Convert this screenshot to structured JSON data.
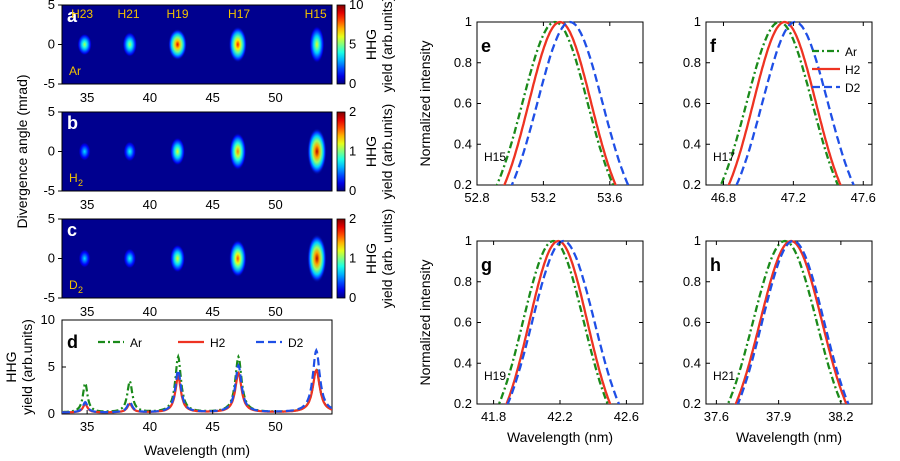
{
  "series": [
    {
      "name": "Ar",
      "color": "#1a8a1a",
      "dash": "7 3 2 3"
    },
    {
      "name": "H2",
      "color": "#ee3322",
      "dash": ""
    },
    {
      "name": "D2",
      "color": "#1f4fe6",
      "dash": "8 4"
    }
  ],
  "chart_data": [
    {
      "id": "a",
      "type": "heatmap",
      "panel_label": "a",
      "gas_label": "Ar",
      "harmonic_labels": [
        {
          "text": "H23",
          "x": 34.6
        },
        {
          "text": "H21",
          "x": 38.3
        },
        {
          "text": "H19",
          "x": 42.2
        },
        {
          "text": "H17",
          "x": 47.1
        },
        {
          "text": "H15",
          "x": 53.2
        }
      ],
      "xlim": [
        33,
        54.5
      ],
      "ylim": [
        -5,
        5
      ],
      "xticks": [
        35,
        40,
        45,
        50
      ],
      "yticks": [
        5,
        0,
        -5
      ],
      "ylabel": "Divergence angle (mrad)",
      "colorbar": {
        "min": 0,
        "max": 10,
        "ticks": [
          10,
          5,
          0
        ],
        "label1": "HHG",
        "label2": "yield (arb.units)"
      },
      "spots": [
        {
          "x": 34.8,
          "amp": 0.55,
          "sy": 1.4
        },
        {
          "x": 38.4,
          "amp": 0.55,
          "sy": 1.6
        },
        {
          "x": 42.2,
          "amp": 0.9,
          "sy": 2.0
        },
        {
          "x": 47.0,
          "amp": 0.85,
          "sy": 2.3
        },
        {
          "x": 53.3,
          "amp": 0.6,
          "sy": 2.4
        }
      ]
    },
    {
      "id": "b",
      "type": "heatmap",
      "panel_label": "b",
      "gas_label": "H",
      "gas_sub": "2",
      "xlim": [
        33,
        54.5
      ],
      "ylim": [
        -5,
        5
      ],
      "xticks": [
        35,
        40,
        45,
        50
      ],
      "yticks": [
        5,
        0,
        -5
      ],
      "colorbar": {
        "min": 0,
        "max": 2,
        "ticks": [
          2,
          1,
          0
        ],
        "label1": "HHG",
        "label2": "yield (arb.units)"
      },
      "spots": [
        {
          "x": 34.8,
          "amp": 0.35,
          "sy": 1.2
        },
        {
          "x": 38.4,
          "amp": 0.4,
          "sy": 1.3
        },
        {
          "x": 42.2,
          "amp": 0.6,
          "sy": 1.8
        },
        {
          "x": 47.0,
          "amp": 0.75,
          "sy": 2.4
        },
        {
          "x": 53.3,
          "amp": 0.95,
          "sy": 3.0
        }
      ]
    },
    {
      "id": "c",
      "type": "heatmap",
      "panel_label": "c",
      "gas_label": "D",
      "gas_sub": "2",
      "xlim": [
        33,
        54.5
      ],
      "ylim": [
        -5,
        5
      ],
      "xticks": [
        35,
        40,
        45,
        50
      ],
      "yticks": [
        5,
        0,
        -5
      ],
      "colorbar": {
        "min": 0,
        "max": 2,
        "ticks": [
          2,
          1,
          0
        ],
        "label1": "HHG",
        "label2": "yield (arb. units)"
      },
      "spots": [
        {
          "x": 34.8,
          "amp": 0.35,
          "sy": 1.2
        },
        {
          "x": 38.4,
          "amp": 0.4,
          "sy": 1.3
        },
        {
          "x": 42.2,
          "amp": 0.6,
          "sy": 1.8
        },
        {
          "x": 47.0,
          "amp": 0.8,
          "sy": 2.4
        },
        {
          "x": 53.3,
          "amp": 0.95,
          "sy": 3.1
        }
      ]
    },
    {
      "id": "d",
      "type": "line",
      "panel_label": "d",
      "xlim": [
        33,
        54.5
      ],
      "ylim": [
        0,
        10
      ],
      "xticks": [
        35,
        40,
        45,
        50
      ],
      "yticks": [
        10,
        5,
        0
      ],
      "xlabel": "Wavelength (nm)",
      "ylabel1": "HHG",
      "ylabel2": "yield (arb.units)",
      "peaks": {
        "Ar": [
          [
            34.85,
            3.1
          ],
          [
            38.4,
            3.3
          ],
          [
            42.25,
            5.9
          ],
          [
            47.05,
            5.9
          ],
          [
            53.25,
            4.6
          ]
        ],
        "H2": [
          [
            34.85,
            0.9
          ],
          [
            38.4,
            0.9
          ],
          [
            42.25,
            3.8
          ],
          [
            47.05,
            4.2
          ],
          [
            53.25,
            4.5
          ]
        ],
        "D2": [
          [
            34.85,
            1.1
          ],
          [
            38.4,
            1.1
          ],
          [
            42.25,
            4.5
          ],
          [
            47.05,
            5.0
          ],
          [
            53.25,
            6.6
          ]
        ]
      }
    },
    {
      "id": "e",
      "type": "line",
      "panel_label": "e",
      "note": "H15",
      "xlim": [
        52.8,
        53.8
      ],
      "ylim": [
        0.2,
        1
      ],
      "xticks": [
        "52.8",
        "53.2",
        "53.6"
      ],
      "yticks": [
        "1",
        "0.8",
        "0.6",
        "0.4",
        "0.2"
      ],
      "ylabel": "Normalized intensity",
      "profiles": {
        "Ar": {
          "center": 53.27,
          "fwhm": 0.46
        },
        "H2": {
          "center": 53.3,
          "fwhm": 0.44
        },
        "D2": {
          "center": 53.36,
          "fwhm": 0.46
        }
      }
    },
    {
      "id": "f",
      "type": "line",
      "panel_label": "f",
      "note": "H17",
      "xlim": [
        46.7,
        47.65
      ],
      "ylim": [
        0.2,
        1
      ],
      "xticks": [
        "46.8",
        "47.2",
        "47.6"
      ],
      "yticks": [
        "1",
        "0.8",
        "0.6",
        "0.4",
        "0.2"
      ],
      "legend": "top-right",
      "profiles": {
        "Ar": {
          "center": 47.12,
          "fwhm": 0.44
        },
        "H2": {
          "center": 47.15,
          "fwhm": 0.42
        },
        "D2": {
          "center": 47.21,
          "fwhm": 0.44
        }
      }
    },
    {
      "id": "g",
      "type": "line",
      "panel_label": "g",
      "note": "H19",
      "xlim": [
        41.7,
        42.7
      ],
      "ylim": [
        0.2,
        1
      ],
      "xticks": [
        "41.8",
        "42.2",
        "42.6"
      ],
      "yticks": [
        "1",
        "0.8",
        "0.6",
        "0.4",
        "0.2"
      ],
      "xlabel": "Wavelength (nm)",
      "ylabel": "Normalized intensity",
      "profiles": {
        "Ar": {
          "center": 42.16,
          "fwhm": 0.43
        },
        "H2": {
          "center": 42.19,
          "fwhm": 0.41
        },
        "D2": {
          "center": 42.22,
          "fwhm": 0.44
        }
      }
    },
    {
      "id": "h",
      "type": "line",
      "panel_label": "h",
      "note": "H21",
      "xlim": [
        37.55,
        38.35
      ],
      "ylim": [
        0.2,
        1
      ],
      "xticks": [
        "37.6",
        "37.9",
        "38.2"
      ],
      "yticks": [
        "1",
        "0.8",
        "0.6",
        "0.4",
        "0.2"
      ],
      "xlabel": "Wavelength (nm)",
      "profiles": {
        "Ar": {
          "center": 37.93,
          "fwhm": 0.36
        },
        "H2": {
          "center": 37.96,
          "fwhm": 0.35
        },
        "D2": {
          "center": 37.97,
          "fwhm": 0.35
        }
      }
    }
  ]
}
